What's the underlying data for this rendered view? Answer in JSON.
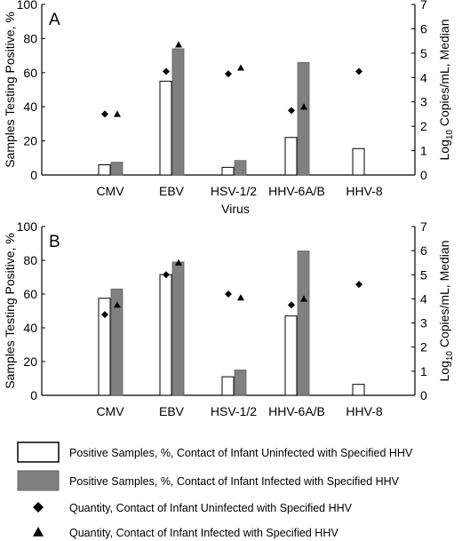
{
  "chart_data": [
    {
      "type": "bar",
      "panel_label": "A",
      "categories": [
        "CMV",
        "EBV",
        "HSV-1/2",
        "HHV-6A/B",
        "HHV-8"
      ],
      "xlabel": "Virus",
      "ylabel": "Samples Testing Positive, %",
      "ylim": [
        0,
        100
      ],
      "yticks": [
        0,
        20,
        40,
        60,
        80,
        100
      ],
      "y2label_pre": "Log",
      "y2label_sub": "10",
      "y2label_post": " Copies/mL, Median",
      "y2lim": [
        0,
        7
      ],
      "y2ticks": [
        0,
        1,
        2,
        3,
        4,
        5,
        6,
        7
      ],
      "series": [
        {
          "name": "Positive Samples, %, Contact of Infant Uninfected with Specified HHV",
          "kind": "bar",
          "axis": "left",
          "values": [
            6,
            55,
            4.5,
            22,
            15.5
          ]
        },
        {
          "name": "Positive Samples, %, Contact of Infant Infected with Specified HHV",
          "kind": "bar",
          "axis": "left",
          "values": [
            7.5,
            74,
            8.5,
            66,
            null
          ]
        },
        {
          "name": "Quantity, Contact of Infant Uninfected with Specified HHV",
          "kind": "diamond",
          "axis": "right",
          "values": [
            2.5,
            4.25,
            4.15,
            2.65,
            4.25
          ]
        },
        {
          "name": "Quantity, Contact of Infant Infected with Specified HHV",
          "kind": "triangle",
          "axis": "right",
          "values": [
            2.5,
            5.35,
            4.4,
            2.8,
            null
          ]
        }
      ]
    },
    {
      "type": "bar",
      "panel_label": "B",
      "categories": [
        "CMV",
        "EBV",
        "HSV-1/2",
        "HHV-6A/B",
        "HHV-8"
      ],
      "xlabel": "",
      "ylabel": "Samples Testing Positive, %",
      "ylim": [
        0,
        100
      ],
      "yticks": [
        0,
        20,
        40,
        60,
        80,
        100
      ],
      "y2label_pre": "Log",
      "y2label_sub": "10",
      "y2label_post": " Copies/mL, Median",
      "y2lim": [
        0,
        7
      ],
      "y2ticks": [
        0,
        1,
        2,
        3,
        4,
        5,
        6,
        7
      ],
      "series": [
        {
          "name": "Positive Samples, %, Contact of Infant Uninfected with Specified HHV",
          "kind": "bar",
          "axis": "left",
          "values": [
            57.5,
            71.5,
            11,
            47,
            6.5
          ]
        },
        {
          "name": "Positive Samples, %, Contact of Infant Infected with Specified HHV",
          "kind": "bar",
          "axis": "left",
          "values": [
            63,
            79,
            15,
            85.5,
            null
          ]
        },
        {
          "name": "Quantity, Contact of Infant Uninfected with Specified HHV",
          "kind": "diamond",
          "axis": "right",
          "values": [
            3.35,
            5.0,
            4.2,
            3.75,
            4.6
          ]
        },
        {
          "name": "Quantity, Contact of Infant Infected with Specified HHV",
          "kind": "triangle",
          "axis": "right",
          "values": [
            3.75,
            5.5,
            4.05,
            4.0,
            null
          ]
        }
      ]
    }
  ],
  "legend": {
    "placement": "bottom",
    "items": [
      {
        "symbol": "white-bar",
        "label": "Positive Samples, %, Contact of Infant Uninfected with Specified HHV"
      },
      {
        "symbol": "gray-bar",
        "label": "Positive Samples, %, Contact of Infant Infected with Specified HHV"
      },
      {
        "symbol": "diamond",
        "label": "Quantity, Contact of Infant Uninfected with Specified HHV"
      },
      {
        "symbol": "triangle",
        "label": "Quantity, Contact of Infant Infected with Specified HHV"
      }
    ]
  },
  "colors": {
    "uninfected_bar": "#ffffff",
    "infected_bar": "#808080",
    "stroke": "#000000"
  }
}
